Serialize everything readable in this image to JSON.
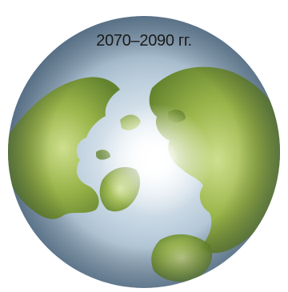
{
  "map": {
    "period_label": "2070–2090 гг."
  },
  "colors": {
    "ocean_light": "#e6eef4",
    "ocean_mid": "#a9c0d3",
    "ocean_edge": "#6f8aa3",
    "land_light": "#b9cf5f",
    "land_mid": "#8fae3a",
    "land_dark": "#5f7f25",
    "ice_glow": "#ffffff"
  }
}
